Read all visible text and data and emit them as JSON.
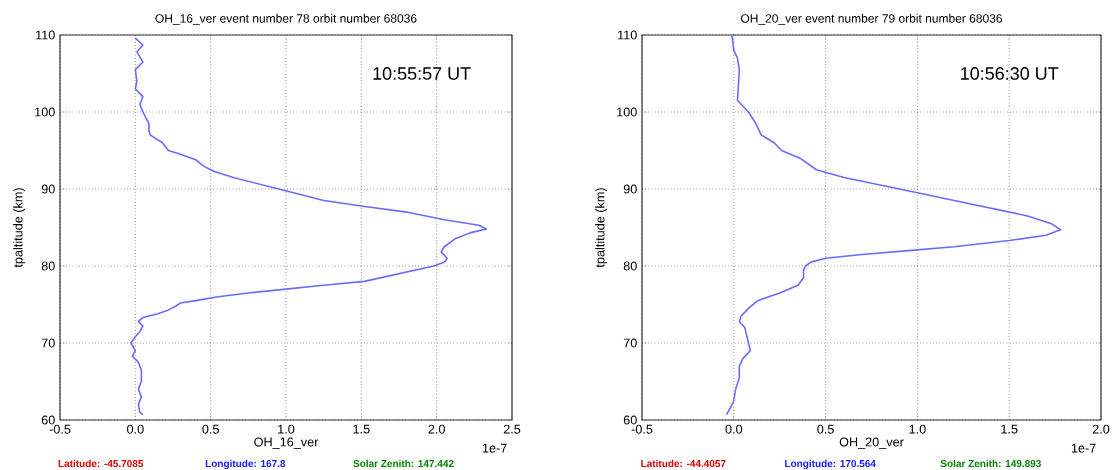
{
  "chart_data": [
    {
      "type": "line",
      "title": "OH_16_ver event number 78 orbit number 68036",
      "xlabel": "OH_16_ver",
      "ylabel": "tpaltitude (km)",
      "xlim": [
        -0.5,
        2.5
      ],
      "ylim": [
        60,
        110
      ],
      "xticks": [
        -0.5,
        {
          "value": 0,
          "label": "0.0"
        },
        0.5,
        {
          "value": 1,
          "label": "1.0"
        },
        1.5,
        {
          "value": 2,
          "label": "2.0"
        },
        2.5
      ],
      "yticks": [
        60,
        70,
        80,
        90,
        100,
        110
      ],
      "grid": true,
      "series": [
        {
          "color": "#6b6bff",
          "x": [
            0.0,
            0.05,
            0.01,
            0.05,
            0.0,
            0.01,
            0.0,
            0.05,
            0.03,
            0.05,
            0.09,
            0.09,
            0.1,
            0.18,
            0.2,
            0.22,
            0.3,
            0.4,
            0.45,
            0.52,
            0.65,
            0.85,
            1.05,
            1.25,
            1.5,
            1.8,
            2.05,
            2.28,
            2.33,
            2.22,
            2.12,
            2.05,
            2.03,
            2.07,
            2.05,
            1.98,
            1.75,
            1.52,
            1.25,
            1.0,
            0.75,
            0.55,
            0.4,
            0.3,
            0.27,
            0.22,
            0.15,
            0.05,
            0.02,
            0.05,
            0.03,
            0.0,
            -0.03,
            0.0,
            -0.02,
            0.02,
            0.04,
            0.04,
            0.02,
            0.04,
            0.02,
            0.03,
            0.05
          ],
          "values": [
            109.6,
            108.7,
            107.8,
            106.5,
            105.5,
            104,
            103,
            102,
            101,
            100,
            98.5,
            97.5,
            97,
            96,
            95.5,
            95,
            94.5,
            93.8,
            93,
            92.3,
            91.5,
            90.5,
            89.5,
            88.5,
            87.8,
            87,
            86,
            85.3,
            84.8,
            84.3,
            83.5,
            82.5,
            81.8,
            81,
            80.5,
            80,
            79,
            78,
            77.5,
            77,
            76.5,
            76,
            75.5,
            75.2,
            74.8,
            74.3,
            73.8,
            73.3,
            72.8,
            72.2,
            71.5,
            70.8,
            70,
            69,
            68.3,
            67.5,
            66.5,
            65,
            64,
            63,
            62,
            61,
            60.7
          ]
        }
      ],
      "annotations": [
        "10:55:57 UT",
        "1e-7",
        "Latitude: -45.7085",
        "Longitude: 167.8",
        "Solar Zenith: 147.442"
      ]
    },
    {
      "type": "line",
      "title": "OH_20_ver event number 79 orbit number 68036",
      "xlabel": "OH_20_ver",
      "ylabel": "tpaltitude (km)",
      "xlim": [
        -0.5,
        2.0
      ],
      "ylim": [
        60,
        110
      ],
      "xticks": [
        -0.5,
        {
          "value": 0,
          "label": "0.0"
        },
        0.5,
        {
          "value": 1,
          "label": "1.0"
        },
        1.5,
        {
          "value": 2,
          "label": "2.0"
        }
      ],
      "yticks": [
        60,
        70,
        80,
        90,
        100,
        110
      ],
      "grid": true,
      "series": [
        {
          "color": "#6b6bff",
          "x": [
            -0.01,
            0.0,
            0.02,
            0.03,
            0.02,
            0.04,
            0.08,
            0.12,
            0.15,
            0.22,
            0.26,
            0.36,
            0.45,
            0.6,
            0.8,
            1.0,
            1.2,
            1.4,
            1.6,
            1.73,
            1.78,
            1.7,
            1.5,
            1.2,
            0.95,
            0.7,
            0.5,
            0.42,
            0.39,
            0.38,
            0.38,
            0.35,
            0.25,
            0.13,
            0.08,
            0.04,
            0.03,
            0.06,
            0.07,
            0.08,
            0.09,
            0.05,
            0.03,
            0.03,
            0.01,
            0.0,
            -0.02,
            -0.04
          ],
          "values": [
            109.9,
            108,
            107,
            105.5,
            101.5,
            101,
            100,
            98.5,
            97,
            96,
            95,
            94,
            92.5,
            91.5,
            90.5,
            89.5,
            88.5,
            87.5,
            86.5,
            85.5,
            84.7,
            84,
            83.3,
            82.5,
            82,
            81.5,
            81,
            80.5,
            80,
            79.5,
            78.5,
            77.5,
            76.5,
            75.5,
            74.5,
            73.5,
            72.8,
            72,
            71,
            70,
            69,
            68,
            67,
            65.5,
            64,
            62.5,
            61.5,
            60.7
          ]
        }
      ],
      "annotations": [
        "10:56:30 UT",
        "1e-7",
        "Latitude: -44.4057",
        "Longitude: 170.564",
        "Solar Zenith: 149.893"
      ]
    }
  ]
}
